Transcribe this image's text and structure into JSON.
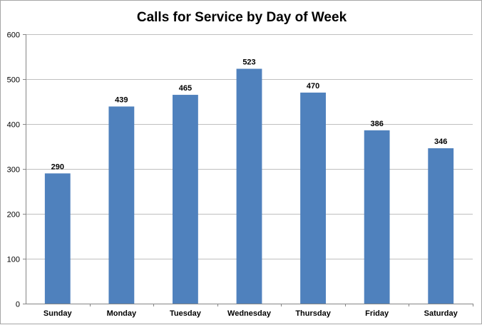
{
  "chart_data": {
    "type": "bar",
    "title": "Calls for Service by Day of Week",
    "categories": [
      "Sunday",
      "Monday",
      "Tuesday",
      "Wednesday",
      "Thursday",
      "Friday",
      "Saturday"
    ],
    "values": [
      290,
      439,
      465,
      523,
      470,
      386,
      346
    ],
    "data_labels": [
      "290",
      "439",
      "465",
      "523",
      "470",
      "386",
      "346"
    ],
    "ylim": [
      0,
      600
    ],
    "yticks": [
      0,
      100,
      200,
      300,
      400,
      500,
      600
    ],
    "grid": true,
    "legend": "none",
    "bar_color": "#4f81bd",
    "grid_color": "#bfbfbf"
  }
}
